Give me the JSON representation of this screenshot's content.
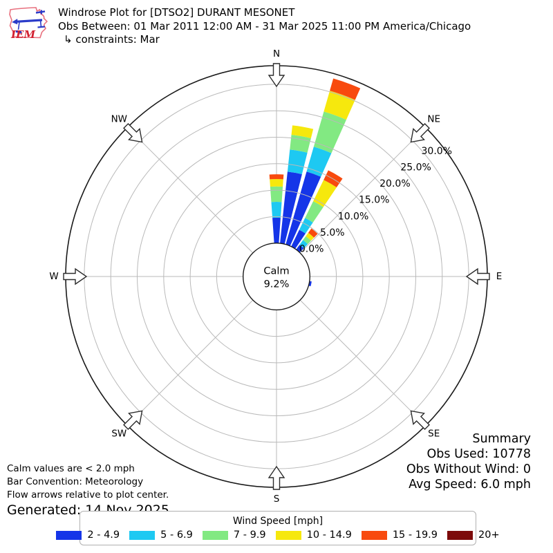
{
  "header": {
    "logo_text": "IEM",
    "title": "Windrose Plot for [DTSO2] DURANT MESONET",
    "subtitle": "Obs Between: 01 Mar 2011 12:00 AM - 31 Mar 2025 11:00 PM America/Chicago",
    "constraints": "↳ constraints: Mar"
  },
  "chart_data": {
    "type": "windrose",
    "units": "mph",
    "calm": {
      "label": "Calm",
      "value": "9.2%"
    },
    "compass_labels": [
      "N",
      "NE",
      "E",
      "SE",
      "S",
      "SW",
      "W",
      "NW"
    ],
    "ring_labels": [
      "0.0%",
      "5.0%",
      "10.0%",
      "15.0%",
      "20.0%",
      "25.0%",
      "30.0%"
    ],
    "ring_values_pct": [
      0,
      5,
      10,
      15,
      20,
      25,
      30
    ],
    "ring_label_azimuth_deg": 52,
    "petal_width_deg": 8,
    "speed_bins": [
      {
        "label": "2 - 4.9",
        "color": "#1535e8"
      },
      {
        "label": "5 - 6.9",
        "color": "#1ec9f2"
      },
      {
        "label": "7 - 9.9",
        "color": "#82e982"
      },
      {
        "label": "10 - 14.9",
        "color": "#f6e80d"
      },
      {
        "label": "15 - 19.9",
        "color": "#f84a0e"
      },
      {
        "label": "20+",
        "color": "#7c0a0a"
      }
    ],
    "petals": [
      {
        "direction_deg": 0,
        "values_pct": [
          4.8,
          3.0,
          2.9,
          1.4,
          0.9,
          0
        ]
      },
      {
        "direction_deg": 10,
        "values_pct": [
          13.6,
          4.2,
          2.8,
          1.8,
          0,
          0
        ]
      },
      {
        "direction_deg": 20,
        "values_pct": [
          14.3,
          4.9,
          6.9,
          4.1,
          2.4,
          0
        ]
      },
      {
        "direction_deg": 30,
        "values_pct": [
          3.5,
          2.5,
          3.5,
          4.5,
          2.0,
          0
        ]
      },
      {
        "direction_deg": 40,
        "values_pct": [
          1.1,
          1.1,
          0.9,
          0.8,
          1.0,
          0
        ]
      },
      {
        "direction_deg": 102,
        "values_pct": [
          0.4,
          0,
          0,
          0,
          0,
          0
        ]
      }
    ],
    "legend_title": "Wind Speed [mph]"
  },
  "notes": {
    "calm_note": "Calm values are < 2.0 mph",
    "convention_note": "Bar Convention: Meteorology",
    "arrows_note": "Flow arrows relative to plot center.",
    "generated": "Generated: 14 Nov 2025"
  },
  "summary": {
    "title": "Summary",
    "obs_used": "Obs Used: 10778",
    "obs_without_wind": "Obs Without Wind: 0",
    "avg_speed": "Avg Speed: 6.0 mph"
  }
}
